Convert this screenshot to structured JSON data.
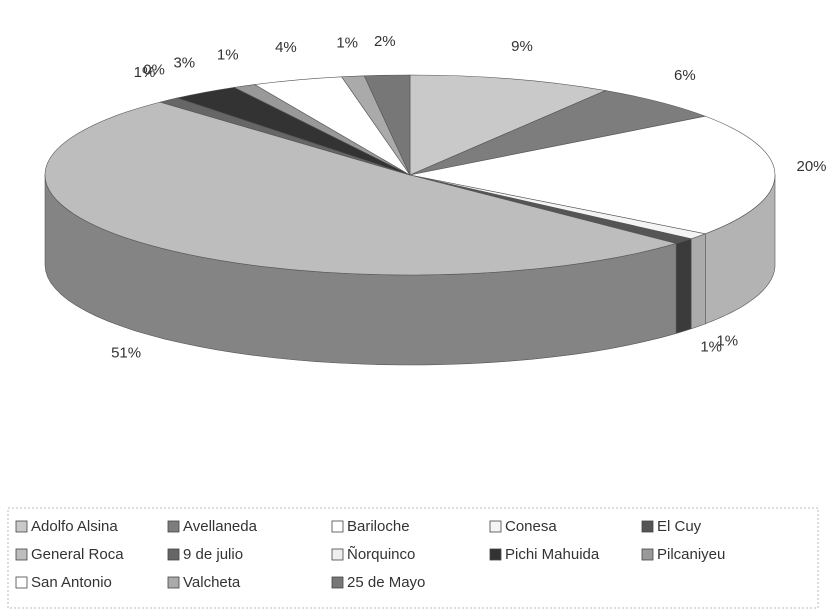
{
  "chart_data": {
    "type": "pie",
    "categories": [
      "Adolfo Alsina",
      "Avellaneda",
      "Bariloche",
      "Conesa",
      "El Cuy",
      "General Roca",
      "9 de julio",
      "Ñorquinco",
      "Pichi Mahuida",
      "Pilcaniyeu",
      "San Antonio",
      "Valcheta",
      "25 de Mayo"
    ],
    "values": [
      9,
      6,
      20,
      1,
      1,
      51,
      1,
      0,
      3,
      1,
      4,
      1,
      2
    ],
    "value_labels": [
      "9%",
      "6%",
      "20%",
      "1%",
      "1%",
      "51%",
      "1%",
      "0%",
      "3%",
      "1%",
      "4%",
      "1%",
      "2%"
    ],
    "colors": [
      "#c9c9c9",
      "#7d7d7d",
      "#ffffff",
      "#f4f4f4",
      "#555555",
      "#bdbdbd",
      "#666666",
      "#eeeeee",
      "#333333",
      "#999999",
      "#ffffff",
      "#aaaaaa",
      "#777777"
    ],
    "legend": "bottom"
  }
}
